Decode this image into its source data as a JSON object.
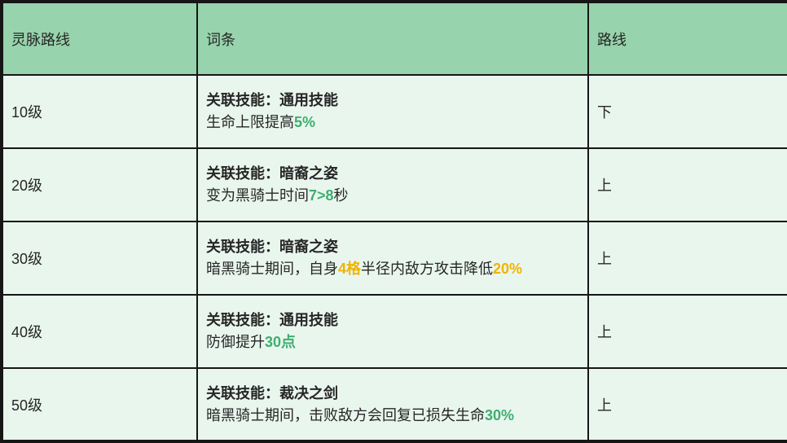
{
  "colors": {
    "header_bg": "#97d3ac",
    "cell_bg": "#e9f6ee",
    "border": "#161616",
    "text": "#262626",
    "accent_green": "#3fae6f",
    "accent_yellow": "#f0b400"
  },
  "table": {
    "headers": [
      {
        "label": "灵脉路线"
      },
      {
        "label": "词条"
      },
      {
        "label": "路线"
      }
    ],
    "rows": [
      {
        "level": "10级",
        "entry_title": "关联技能：通用技能",
        "entry_desc": [
          {
            "t": "生命上限提高"
          },
          {
            "t": "5%",
            "c": "green"
          }
        ],
        "route": "下"
      },
      {
        "level": "20级",
        "entry_title": "关联技能：暗裔之姿",
        "entry_desc": [
          {
            "t": "变为黑骑士时间"
          },
          {
            "t": "7>8",
            "c": "green"
          },
          {
            "t": "秒"
          }
        ],
        "route": "上"
      },
      {
        "level": "30级",
        "entry_title": "关联技能：暗裔之姿",
        "entry_desc": [
          {
            "t": "暗黑骑士期间，自身"
          },
          {
            "t": "4格",
            "c": "yellow"
          },
          {
            "t": "半径内敌方攻击降低"
          },
          {
            "t": "20%",
            "c": "yellow"
          }
        ],
        "route": "上"
      },
      {
        "level": "40级",
        "entry_title": "关联技能：通用技能",
        "entry_desc": [
          {
            "t": "防御提升"
          },
          {
            "t": "30点",
            "c": "green"
          }
        ],
        "route": "上"
      },
      {
        "level": "50级",
        "entry_title": "关联技能：裁决之剑",
        "entry_desc": [
          {
            "t": "暗黑骑士期间，击败敌方会回复已损失生命"
          },
          {
            "t": "30%",
            "c": "green"
          }
        ],
        "route": "上"
      }
    ]
  }
}
